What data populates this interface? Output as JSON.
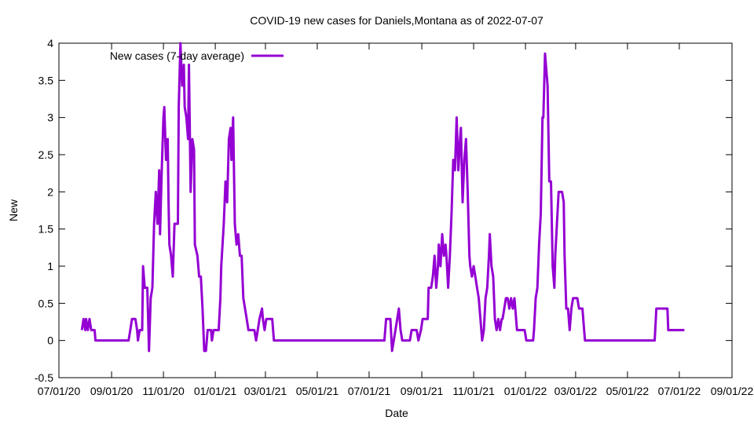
{
  "chart_data": {
    "type": "line",
    "title": "COVID-19 new cases for Daniels,Montana as of 2022-07-07",
    "x_label": "Date",
    "y_label": "New",
    "legend": "top-left",
    "xlim": [
      "2020-07-01",
      "2022-09-01"
    ],
    "ylim": [
      -0.5,
      4
    ],
    "yticks": [
      -0.5,
      0,
      0.5,
      1,
      1.5,
      2,
      2.5,
      3,
      3.5,
      4
    ],
    "xticks": [
      {
        "value": "2020-07-01",
        "label": "07/01/20"
      },
      {
        "value": "2020-09-01",
        "label": "09/01/20"
      },
      {
        "value": "2020-11-01",
        "label": "11/01/20"
      },
      {
        "value": "2021-01-01",
        "label": "01/01/21"
      },
      {
        "value": "2021-03-01",
        "label": "03/01/21"
      },
      {
        "value": "2021-05-01",
        "label": "05/01/21"
      },
      {
        "value": "2021-07-01",
        "label": "07/01/21"
      },
      {
        "value": "2021-09-01",
        "label": "09/01/21"
      },
      {
        "value": "2021-11-01",
        "label": "11/01/21"
      },
      {
        "value": "2022-01-01",
        "label": "01/01/22"
      },
      {
        "value": "2022-03-01",
        "label": "03/01/22"
      },
      {
        "value": "2022-05-01",
        "label": "05/01/22"
      },
      {
        "value": "2022-07-01",
        "label": "07/01/22"
      },
      {
        "value": "2022-09-01",
        "label": "09/01/22"
      }
    ],
    "x": [
      "2020-07-28",
      "2020-07-30",
      "2020-08-01",
      "2020-08-02",
      "2020-08-04",
      "2020-08-06",
      "2020-08-08",
      "2020-08-12",
      "2020-08-13",
      "2020-09-21",
      "2020-09-23",
      "2020-09-25",
      "2020-09-29",
      "2020-10-01",
      "2020-10-02",
      "2020-10-04",
      "2020-10-07",
      "2020-10-08",
      "2020-10-10",
      "2020-10-13",
      "2020-10-15",
      "2020-10-17",
      "2020-10-19",
      "2020-10-21",
      "2020-10-23",
      "2020-10-25",
      "2020-10-27",
      "2020-10-28",
      "2020-10-30",
      "2020-11-01",
      "2020-11-02",
      "2020-11-04",
      "2020-11-06",
      "2020-11-07",
      "2020-11-08",
      "2020-11-10",
      "2020-11-12",
      "2020-11-14",
      "2020-11-18",
      "2020-11-19",
      "2020-11-21",
      "2020-11-23",
      "2020-11-25",
      "2020-11-26",
      "2020-11-28",
      "2020-11-30",
      "2020-12-01",
      "2020-12-03",
      "2020-12-05",
      "2020-12-07",
      "2020-12-08",
      "2020-12-11",
      "2020-12-13",
      "2020-12-15",
      "2020-12-17",
      "2020-12-19",
      "2020-12-21",
      "2020-12-23",
      "2020-12-27",
      "2020-12-28",
      "2020-12-30",
      "2021-01-05",
      "2021-01-07",
      "2021-01-08",
      "2021-01-11",
      "2021-01-13",
      "2021-01-15",
      "2021-01-17",
      "2021-01-19",
      "2021-01-20",
      "2021-01-22",
      "2021-01-24",
      "2021-01-26",
      "2021-01-28",
      "2021-01-30",
      "2021-02-01",
      "2021-02-03",
      "2021-02-05",
      "2021-02-07",
      "2021-02-09",
      "2021-02-16",
      "2021-02-18",
      "2021-02-20",
      "2021-02-22",
      "2021-02-25",
      "2021-02-26",
      "2021-02-28",
      "2021-03-02",
      "2021-03-09",
      "2021-03-11",
      "2021-07-19",
      "2021-07-21",
      "2021-07-26",
      "2021-07-28",
      "2021-07-30",
      "2021-08-01",
      "2021-08-05",
      "2021-08-07",
      "2021-08-09",
      "2021-08-18",
      "2021-08-20",
      "2021-08-26",
      "2021-08-28",
      "2021-08-31",
      "2021-09-02",
      "2021-09-08",
      "2021-09-09",
      "2021-09-12",
      "2021-09-14",
      "2021-09-16",
      "2021-09-18",
      "2021-09-20",
      "2021-09-21",
      "2021-09-23",
      "2021-09-25",
      "2021-09-27",
      "2021-09-29",
      "2021-09-30",
      "2021-10-02",
      "2021-10-04",
      "2021-10-06",
      "2021-10-08",
      "2021-10-10",
      "2021-10-12",
      "2021-10-14",
      "2021-10-16",
      "2021-10-17",
      "2021-10-19",
      "2021-10-21",
      "2021-10-23",
      "2021-10-25",
      "2021-10-27",
      "2021-10-28",
      "2021-10-30",
      "2021-11-01",
      "2021-11-03",
      "2021-11-05",
      "2021-11-07",
      "2021-11-09",
      "2021-11-11",
      "2021-11-13",
      "2021-11-15",
      "2021-11-17",
      "2021-11-19",
      "2021-11-20",
      "2021-11-22",
      "2021-11-24",
      "2021-11-26",
      "2021-11-28",
      "2021-11-30",
      "2021-12-02",
      "2021-12-04",
      "2021-12-05",
      "2021-12-07",
      "2021-12-09",
      "2021-12-11",
      "2021-12-13",
      "2021-12-15",
      "2021-12-17",
      "2021-12-19",
      "2021-12-20",
      "2021-12-22",
      "2021-12-31",
      "2022-01-02",
      "2022-01-10",
      "2022-01-11",
      "2022-01-13",
      "2022-01-15",
      "2022-01-17",
      "2022-01-19",
      "2022-01-21",
      "2022-01-22",
      "2022-01-24",
      "2022-01-26",
      "2022-01-27",
      "2022-01-29",
      "2022-01-31",
      "2022-02-02",
      "2022-02-04",
      "2022-02-05",
      "2022-02-07",
      "2022-02-09",
      "2022-02-13",
      "2022-02-15",
      "2022-02-16",
      "2022-02-18",
      "2022-02-20",
      "2022-02-22",
      "2022-02-24",
      "2022-02-26",
      "2022-03-03",
      "2022-03-05",
      "2022-03-09",
      "2022-03-11",
      "2022-03-12",
      "2022-06-02",
      "2022-06-04",
      "2022-06-17",
      "2022-06-18",
      "2022-07-07"
    ],
    "series": [
      {
        "name": "New cases (7-day average)",
        "color": "#9400d3",
        "values": [
          0.14,
          0.29,
          0.14,
          0.29,
          0.14,
          0.29,
          0.14,
          0.14,
          0,
          0,
          0.14,
          0.29,
          0.29,
          0.14,
          0,
          0.14,
          0.14,
          1.0,
          0.71,
          0.71,
          -0.14,
          0.57,
          0.71,
          1.57,
          2.0,
          1.57,
          2.29,
          1.43,
          2.29,
          3.0,
          3.14,
          2.43,
          2.71,
          1.86,
          1.29,
          1.14,
          0.86,
          1.57,
          1.57,
          3.14,
          4.0,
          3.43,
          3.71,
          3.14,
          3.0,
          2.71,
          3.71,
          2.0,
          2.71,
          2.57,
          1.29,
          1.14,
          0.86,
          0.86,
          0.43,
          -0.14,
          -0.14,
          0.14,
          0.14,
          0,
          0.14,
          0.14,
          0.57,
          1.0,
          1.57,
          2.14,
          1.86,
          2.71,
          2.86,
          2.43,
          3.0,
          1.57,
          1.29,
          1.43,
          1.14,
          1.14,
          0.57,
          0.43,
          0.29,
          0.14,
          0.14,
          0,
          0.14,
          0.29,
          0.43,
          0.29,
          0.14,
          0.29,
          0.29,
          0,
          0,
          0.29,
          0.29,
          -0.14,
          0,
          0.14,
          0.43,
          0.14,
          0,
          0,
          0.14,
          0.14,
          0,
          0.14,
          0.29,
          0.29,
          0.71,
          0.71,
          0.86,
          1.14,
          0.71,
          1.0,
          1.29,
          1.0,
          1.43,
          1.14,
          1.29,
          1.14,
          0.71,
          1.14,
          1.71,
          2.43,
          2.29,
          3.0,
          2.29,
          2.71,
          2.86,
          1.86,
          2.43,
          2.71,
          2.0,
          1.14,
          1.0,
          0.86,
          1.0,
          0.86,
          0.71,
          0.57,
          0.29,
          0,
          0.14,
          0.57,
          0.71,
          1.14,
          1.43,
          1.0,
          0.86,
          0.29,
          0.14,
          0.29,
          0.14,
          0.29,
          0.29,
          0.43,
          0.57,
          0.57,
          0.43,
          0.57,
          0.43,
          0.57,
          0.43,
          0.14,
          0.14,
          0,
          0,
          0.14,
          0.57,
          0.71,
          1.29,
          1.71,
          3.0,
          3.0,
          3.86,
          3.57,
          3.43,
          2.14,
          2.14,
          1.0,
          0.71,
          1.14,
          1.57,
          2.0,
          2.0,
          1.86,
          1.14,
          0.43,
          0.43,
          0.14,
          0.43,
          0.57,
          0.57,
          0.43,
          0.43,
          0.14,
          0,
          0,
          0.43,
          0.43,
          0.14,
          0.14
        ]
      }
    ]
  }
}
